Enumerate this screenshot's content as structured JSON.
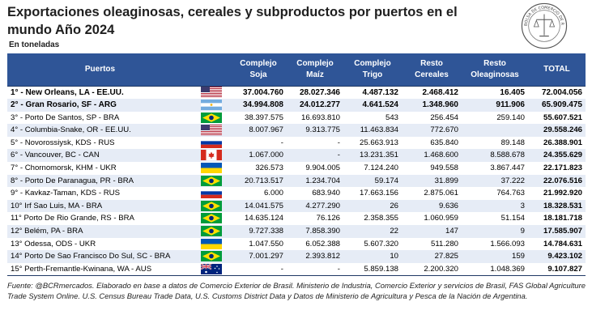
{
  "title": "Exportaciones oleaginosas, cereales y subproductos por puertos en el mundo Año 2024",
  "unit": "En toneladas",
  "seal_text": "BOLSA DE COMERCIO DE ROSARIO",
  "columns": [
    "Puertos",
    "",
    "Complejo Soja",
    "Complejo Maíz",
    "Complejo Trigo",
    "Resto Cereales",
    "Resto Oleaginosas",
    "TOTAL"
  ],
  "colors": {
    "header": "#2f5597",
    "stripe": "#e6ecf6"
  },
  "rows": [
    {
      "port": "1° - New Orleans,  LA - EE.UU.",
      "flag": "usa",
      "soja": "37.004.760",
      "maiz": "28.027.346",
      "trigo": "4.487.132",
      "resto_cereales": "2.468.412",
      "resto_oleaginosas": "16.405",
      "total": "72.004.056",
      "bold": true
    },
    {
      "port": "2° - Gran Rosario, SF - ARG",
      "flag": "argentina",
      "soja": "34.994.808",
      "maiz": "24.012.277",
      "trigo": "4.641.524",
      "resto_cereales": "1.348.960",
      "resto_oleaginosas": "911.906",
      "total": "65.909.475",
      "bold": true
    },
    {
      "port": "3° - Porto De Santos, SP - BRA",
      "flag": "brazil",
      "soja": "38.397.575",
      "maiz": "16.693.810",
      "trigo": "543",
      "resto_cereales": "256.454",
      "resto_oleaginosas": "259.140",
      "total": "55.607.521",
      "bold": false
    },
    {
      "port": "4° - Columbia-Snake,  OR - EE.UU.",
      "flag": "usa",
      "soja": "8.007.967",
      "maiz": "9.313.775",
      "trigo": "11.463.834",
      "resto_cereales": "772.670",
      "resto_oleaginosas": "",
      "total": "29.558.246",
      "bold": false
    },
    {
      "port": "5° - Novorossiysk, KDS - RUS",
      "flag": "russia",
      "soja": "-",
      "maiz": "-",
      "trigo": "25.663.913",
      "resto_cereales": "635.840",
      "resto_oleaginosas": "89.148",
      "total": "26.388.901",
      "bold": false
    },
    {
      "port": "6° - Vancouver, BC - CAN",
      "flag": "canada",
      "soja": "1.067.000",
      "maiz": "-",
      "trigo": "13.231.351",
      "resto_cereales": "1.468.600",
      "resto_oleaginosas": "8.588.678",
      "total": "24.355.629",
      "bold": false
    },
    {
      "port": "7° - Chornomorsk, KHM - UKR",
      "flag": "ukraine",
      "soja": "326.573",
      "maiz": "9.904.005",
      "trigo": "7.124.240",
      "resto_cereales": "949.558",
      "resto_oleaginosas": "3.867.447",
      "total": "22.171.823",
      "bold": false
    },
    {
      "port": "8° - Porto De Paranagua, PR - BRA",
      "flag": "brazil",
      "soja": "20.713.517",
      "maiz": "1.234.704",
      "trigo": "59.174",
      "resto_cereales": "31.899",
      "resto_oleaginosas": "37.222",
      "total": "22.076.516",
      "bold": false
    },
    {
      "port": "9° - Kavkaz-Taman, KDS - RUS",
      "flag": "russia",
      "soja": "6.000",
      "maiz": "683.940",
      "trigo": "17.663.156",
      "resto_cereales": "2.875.061",
      "resto_oleaginosas": "764.763",
      "total": "21.992.920",
      "bold": false
    },
    {
      "port": "10° Irf Sao Luis, MA - BRA",
      "flag": "brazil",
      "soja": "14.041.575",
      "maiz": "4.277.290",
      "trigo": "26",
      "resto_cereales": "9.636",
      "resto_oleaginosas": "3",
      "total": "18.328.531",
      "bold": false
    },
    {
      "port": "11° Porto De Rio Grande, RS - BRA",
      "flag": "brazil",
      "soja": "14.635.124",
      "maiz": "76.126",
      "trigo": "2.358.355",
      "resto_cereales": "1.060.959",
      "resto_oleaginosas": "51.154",
      "total": "18.181.718",
      "bold": false
    },
    {
      "port": "12° Belém, PA - BRA",
      "flag": "brazil",
      "soja": "9.727.338",
      "maiz": "7.858.390",
      "trigo": "22",
      "resto_cereales": "147",
      "resto_oleaginosas": "9",
      "total": "17.585.907",
      "bold": false
    },
    {
      "port": "13° Odessa, ODS - UKR",
      "flag": "ukraine",
      "soja": "1.047.550",
      "maiz": "6.052.388",
      "trigo": "5.607.320",
      "resto_cereales": "511.280",
      "resto_oleaginosas": "1.566.093",
      "total": "14.784.631",
      "bold": false
    },
    {
      "port": "14° Porto De Sao Francisco Do Sul, SC - BRA",
      "flag": "brazil",
      "soja": "7.001.297",
      "maiz": "2.393.812",
      "trigo": "10",
      "resto_cereales": "27.825",
      "resto_oleaginosas": "159",
      "total": "9.423.102",
      "bold": false
    },
    {
      "port": "15° Perth-Fremantle-Kwinana, WA - AUS",
      "flag": "australia",
      "soja": "-",
      "maiz": "-",
      "trigo": "5.859.138",
      "resto_cereales": "2.200.320",
      "resto_oleaginosas": "1.048.369",
      "total": "9.107.827",
      "bold": false
    }
  ],
  "source": "Fuente: @BCRmercados. Elaborado en base a datos de Comercio Exterior de Brasil. Ministerio de Industria, Comercio Exterior y servicios de Brasil, FAS Global Agriculture Trade System Online. U.S. Census Bureau Trade Data, U.S. Customs District Data y Datos de Ministerio de Agricultura y Pesca de la Nación de Argentina."
}
